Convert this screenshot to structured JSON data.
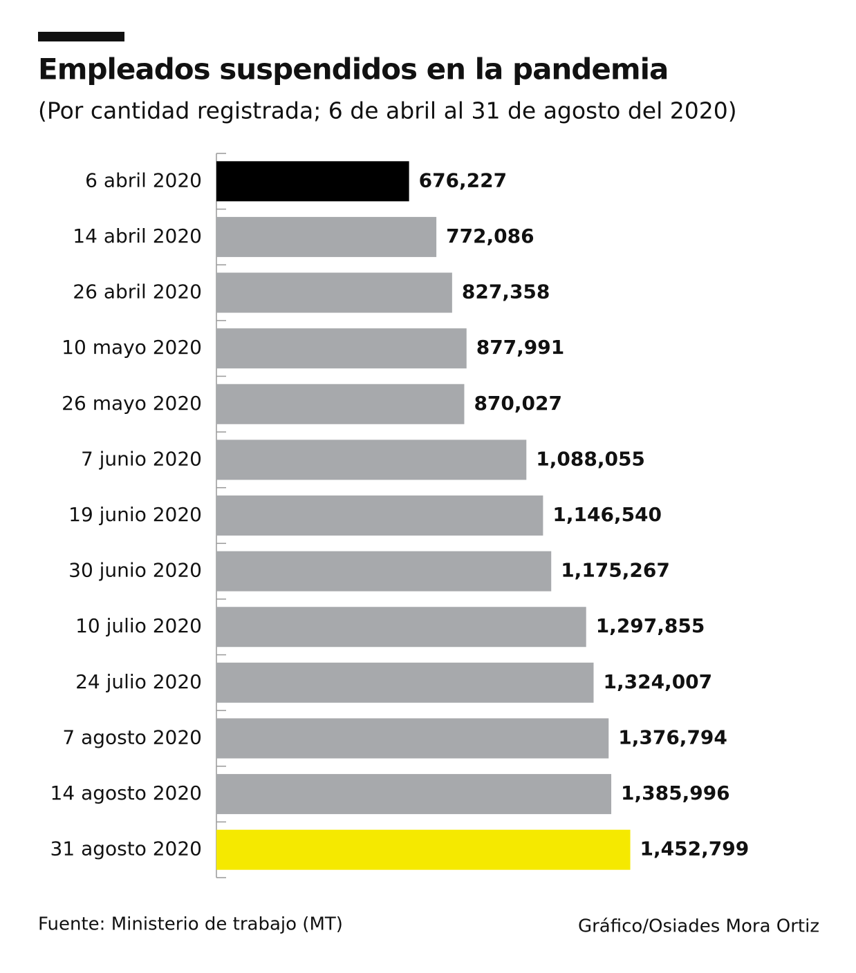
{
  "chart_data": {
    "type": "barh",
    "title": "Empleados suspendidos en la pandemia",
    "subtitle": "(Por cantidad registrada; 6 de abril al 31 de agosto del 2020)",
    "categories": [
      "6 abril 2020",
      "14 abril 2020",
      "26 abril 2020",
      "10 mayo 2020",
      "26 mayo 2020",
      "7 junio 2020",
      "19 junio 2020",
      "30 junio 2020",
      "10 julio 2020",
      "24 julio 2020",
      "7 agosto 2020",
      "14 agosto 2020",
      "31 agosto 2020"
    ],
    "values": [
      676227,
      772086,
      827358,
      877991,
      870027,
      1088055,
      1146540,
      1175267,
      1297855,
      1324007,
      1376794,
      1385996,
      1452799
    ],
    "value_labels": [
      "676,227",
      "772,086",
      "827,358",
      "877,991",
      "870,027",
      "1,088,055",
      "1,146,540",
      "1,175,267",
      "1,297,855",
      "1,324,007",
      "1,376,794",
      "1,385,996",
      "1,452,799"
    ],
    "colors": [
      "#000000",
      "#a7a9ac",
      "#a7a9ac",
      "#a7a9ac",
      "#a7a9ac",
      "#a7a9ac",
      "#a7a9ac",
      "#a7a9ac",
      "#a7a9ac",
      "#a7a9ac",
      "#a7a9ac",
      "#a7a9ac",
      "#f5e900"
    ],
    "xlim": [
      0,
      1500000
    ],
    "source": "Fuente: Ministerio de trabajo (MT)",
    "credit": "Gráfico/Osiades Mora Ortiz"
  }
}
